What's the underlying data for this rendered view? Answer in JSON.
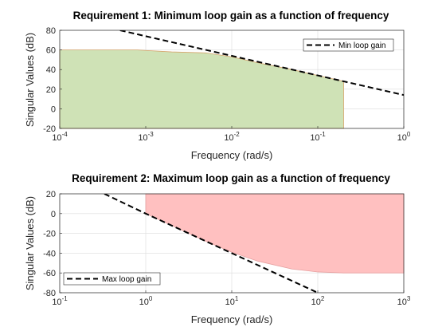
{
  "chart_data": [
    {
      "type": "area",
      "title": "Requirement 1: Minimum loop gain as a function of frequency",
      "xlabel": "Frequency (rad/s)",
      "ylabel": "Singular Values (dB)",
      "xscale": "log",
      "xlim": [
        0.0001,
        1
      ],
      "ylim": [
        -20,
        80
      ],
      "xticks": [
        {
          "base": "10",
          "exp": "-4"
        },
        {
          "base": "10",
          "exp": "-3"
        },
        {
          "base": "10",
          "exp": "-2"
        },
        {
          "base": "10",
          "exp": "-1"
        },
        {
          "base": "10",
          "exp": "0"
        }
      ],
      "yticks": [
        "-20",
        "0",
        "20",
        "40",
        "60",
        "80"
      ],
      "grid": true,
      "legend_position": "top-right",
      "line": {
        "name": "Min loop gain",
        "style": "dashed",
        "color": "#000000",
        "x": [
          0.0004,
          0.001,
          0.01,
          0.1,
          1
        ],
        "y": [
          82,
          74,
          54,
          34,
          14
        ]
      },
      "region": {
        "color": "#cfe2b6",
        "edge_color": "#d6a36a",
        "x": [
          0.0001,
          0.0008,
          0.001,
          0.002,
          0.005,
          0.01,
          0.02,
          0.05,
          0.1,
          0.2
        ],
        "y": [
          60,
          60,
          59.5,
          58,
          57,
          53,
          47,
          40,
          34,
          28
        ],
        "x_end": 0.2
      }
    },
    {
      "type": "area",
      "title": "Requirement 2: Maximum loop gain as a function of frequency",
      "xlabel": "Frequency (rad/s)",
      "ylabel": "Singular Values (dB)",
      "xscale": "log",
      "xlim": [
        0.1,
        1000
      ],
      "ylim": [
        -80,
        20
      ],
      "xticks": [
        {
          "base": "10",
          "exp": "-1"
        },
        {
          "base": "10",
          "exp": "0"
        },
        {
          "base": "10",
          "exp": "1"
        },
        {
          "base": "10",
          "exp": "2"
        },
        {
          "base": "10",
          "exp": "3"
        }
      ],
      "yticks": [
        "-80",
        "-60",
        "-40",
        "-20",
        "0",
        "20"
      ],
      "grid": true,
      "legend_position": "bottom-left",
      "line": {
        "name": "Max loop gain",
        "style": "dashed",
        "color": "#000000",
        "x": [
          0.33,
          1,
          10,
          100
        ],
        "y": [
          20,
          0,
          -40,
          -80
        ]
      },
      "region": {
        "color": "#ffc0c0",
        "edge_color": "#e6a0a0",
        "x": [
          1,
          2,
          5,
          10,
          20,
          50,
          100,
          200,
          500,
          1000
        ],
        "y": [
          0,
          -12,
          -28,
          -39,
          -48,
          -56,
          -59,
          -60,
          -60,
          -60
        ],
        "x_start": 1
      }
    }
  ]
}
